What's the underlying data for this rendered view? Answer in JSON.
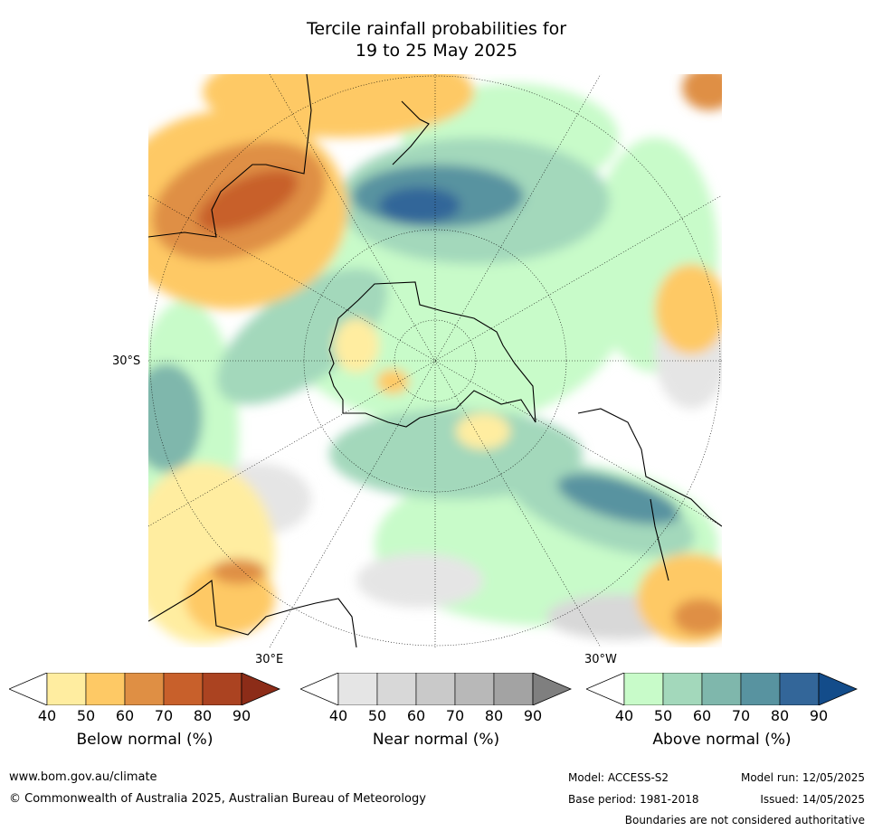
{
  "title_line1": "Tercile rainfall probabilities for",
  "title_line2": "19 to 25 May 2025",
  "map_labels": {
    "lat_30s": "30°S",
    "lon_30e": "30°E",
    "lon_30w": "30°W"
  },
  "legend": {
    "ticks": [
      "40",
      "50",
      "60",
      "70",
      "80",
      "90"
    ],
    "below": {
      "label": "Below normal (%)",
      "colors": [
        "#ffffff",
        "#ffeda0",
        "#fec965",
        "#df8f44",
        "#c8602b",
        "#ab4321",
        "#8c2c18"
      ]
    },
    "near": {
      "label": "Near normal (%)",
      "colors": [
        "#ffffff",
        "#e5e5e5",
        "#d8d8d8",
        "#c9c9c9",
        "#b8b8b8",
        "#a3a3a3",
        "#7f7f7f"
      ]
    },
    "above": {
      "label": "Above normal (%)",
      "colors": [
        "#ffffff",
        "#c8fbc9",
        "#a3d8bb",
        "#7fb7ac",
        "#5893a0",
        "#336699",
        "#134c8a"
      ]
    }
  },
  "footer": {
    "website": "www.bom.gov.au/climate",
    "copyright": "© Commonwealth of Australia 2025, Australian Bureau of Meteorology",
    "model": "Model: ACCESS-S2",
    "base_period": "Base period: 1981-2018",
    "model_run": "Model run: 12/05/2025",
    "issued": "Issued: 14/05/2025",
    "boundaries": "Boundaries are not considered authoritative"
  }
}
